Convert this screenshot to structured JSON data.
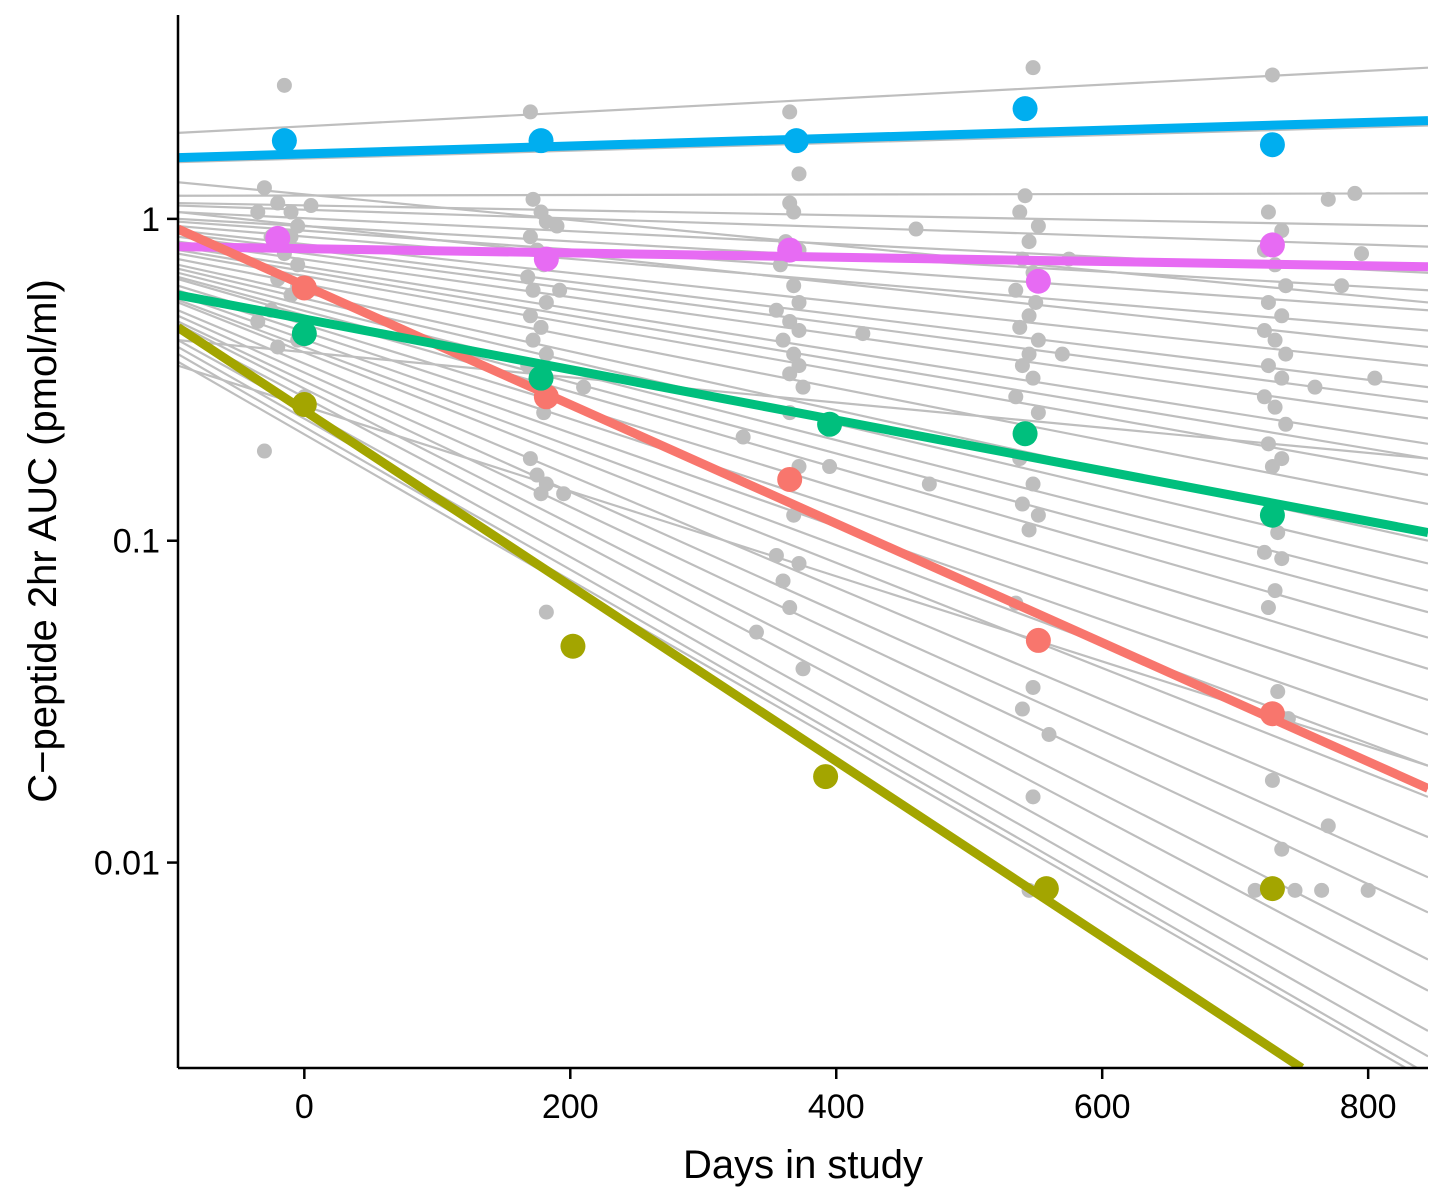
{
  "chart_data": {
    "type": "scatter",
    "title": "",
    "xlabel": "Days in study",
    "ylabel": "C−peptide 2hr AUC (pmol/ml)",
    "x_scale": "linear",
    "y_scale": "log10",
    "xlim": [
      -95,
      845
    ],
    "ylim": [
      0.0023,
      4.3
    ],
    "grid": false,
    "legend": "none",
    "x_ticks": [
      {
        "value": 0,
        "label": "0"
      },
      {
        "value": 200,
        "label": "200"
      },
      {
        "value": 400,
        "label": "400"
      },
      {
        "value": 600,
        "label": "600"
      },
      {
        "value": 800,
        "label": "800"
      }
    ],
    "y_ticks": [
      {
        "value": 1,
        "label": "1"
      },
      {
        "value": 0.1,
        "label": "0.1"
      },
      {
        "value": 0.01,
        "label": "0.01"
      }
    ],
    "background_fits": {
      "color": "#bebebe",
      "x_range": [
        -95,
        845
      ],
      "start_end_values": [
        [
          1.85,
          2.95
        ],
        [
          1.5,
          1.95
        ],
        [
          1.18,
          1.2
        ],
        [
          1.12,
          0.95
        ],
        [
          1.1,
          0.82
        ],
        [
          1.05,
          0.68
        ],
        [
          1.0,
          0.6
        ],
        [
          0.98,
          0.52
        ],
        [
          0.95,
          0.45
        ],
        [
          1.05,
          0.4
        ],
        [
          0.92,
          0.35
        ],
        [
          0.9,
          0.3
        ],
        [
          0.88,
          0.27
        ],
        [
          0.85,
          0.24
        ],
        [
          0.82,
          0.2
        ],
        [
          0.8,
          0.18
        ],
        [
          0.78,
          0.16
        ],
        [
          0.75,
          0.13
        ],
        [
          0.72,
          0.1
        ],
        [
          0.7,
          0.085
        ],
        [
          0.68,
          0.07
        ],
        [
          0.66,
          0.06
        ],
        [
          0.65,
          0.05
        ],
        [
          0.62,
          0.04
        ],
        [
          0.6,
          0.032
        ],
        [
          0.58,
          0.025
        ],
        [
          0.56,
          0.02
        ],
        [
          0.55,
          0.016
        ],
        [
          0.52,
          0.012
        ],
        [
          0.5,
          0.009
        ],
        [
          0.48,
          0.007
        ],
        [
          0.47,
          0.005
        ],
        [
          0.45,
          0.004
        ],
        [
          0.42,
          0.003
        ],
        [
          0.4,
          0.0025
        ],
        [
          0.38,
          0.0022
        ],
        [
          0.36,
          0.0021
        ],
        [
          0.35,
          0.02
        ],
        [
          0.42,
          0.18
        ],
        [
          1.3,
          0.55
        ]
      ]
    },
    "background_points": {
      "color": "#bebebe",
      "points": [
        [
          -15,
          2.6
        ],
        [
          -30,
          1.25
        ],
        [
          -20,
          1.12
        ],
        [
          -10,
          1.05
        ],
        [
          -5,
          0.95
        ],
        [
          -25,
          0.88
        ],
        [
          -15,
          0.78
        ],
        [
          -5,
          0.72
        ],
        [
          -20,
          0.65
        ],
        [
          -10,
          0.58
        ],
        [
          -25,
          0.52
        ],
        [
          -35,
          0.48
        ],
        [
          -5,
          0.42
        ],
        [
          -20,
          0.4
        ],
        [
          -30,
          0.19
        ],
        [
          0,
          0.28
        ],
        [
          -5,
          0.62
        ],
        [
          5,
          1.1
        ],
        [
          -35,
          1.05
        ],
        [
          -10,
          0.88
        ],
        [
          170,
          2.15
        ],
        [
          172,
          1.15
        ],
        [
          178,
          1.05
        ],
        [
          182,
          0.98
        ],
        [
          170,
          0.88
        ],
        [
          175,
          0.8
        ],
        [
          180,
          0.72
        ],
        [
          168,
          0.66
        ],
        [
          172,
          0.6
        ],
        [
          182,
          0.55
        ],
        [
          170,
          0.5
        ],
        [
          178,
          0.46
        ],
        [
          172,
          0.42
        ],
        [
          182,
          0.38
        ],
        [
          168,
          0.35
        ],
        [
          180,
          0.25
        ],
        [
          170,
          0.18
        ],
        [
          175,
          0.16
        ],
        [
          182,
          0.15
        ],
        [
          178,
          0.14
        ],
        [
          195,
          0.14
        ],
        [
          182,
          0.06
        ],
        [
          190,
          0.95
        ],
        [
          192,
          0.6
        ],
        [
          210,
          0.3
        ],
        [
          365,
          2.15
        ],
        [
          372,
          1.38
        ],
        [
          365,
          1.12
        ],
        [
          368,
          1.05
        ],
        [
          362,
          0.85
        ],
        [
          372,
          0.8
        ],
        [
          358,
          0.72
        ],
        [
          368,
          0.62
        ],
        [
          372,
          0.55
        ],
        [
          355,
          0.52
        ],
        [
          365,
          0.48
        ],
        [
          372,
          0.45
        ],
        [
          360,
          0.42
        ],
        [
          368,
          0.38
        ],
        [
          372,
          0.35
        ],
        [
          365,
          0.33
        ],
        [
          375,
          0.3
        ],
        [
          365,
          0.25
        ],
        [
          372,
          0.17
        ],
        [
          368,
          0.12
        ],
        [
          355,
          0.09
        ],
        [
          372,
          0.085
        ],
        [
          360,
          0.075
        ],
        [
          365,
          0.062
        ],
        [
          375,
          0.04
        ],
        [
          330,
          0.21
        ],
        [
          340,
          0.052
        ],
        [
          420,
          0.44
        ],
        [
          395,
          0.17
        ],
        [
          460,
          0.93
        ],
        [
          470,
          0.15
        ],
        [
          548,
          2.95
        ],
        [
          542,
          1.18
        ],
        [
          538,
          1.05
        ],
        [
          552,
          0.95
        ],
        [
          545,
          0.85
        ],
        [
          540,
          0.75
        ],
        [
          548,
          0.68
        ],
        [
          535,
          0.6
        ],
        [
          550,
          0.55
        ],
        [
          545,
          0.5
        ],
        [
          538,
          0.46
        ],
        [
          552,
          0.42
        ],
        [
          545,
          0.38
        ],
        [
          540,
          0.35
        ],
        [
          548,
          0.32
        ],
        [
          535,
          0.28
        ],
        [
          552,
          0.25
        ],
        [
          545,
          0.22
        ],
        [
          538,
          0.18
        ],
        [
          548,
          0.15
        ],
        [
          540,
          0.13
        ],
        [
          552,
          0.12
        ],
        [
          545,
          0.108
        ],
        [
          535,
          0.064
        ],
        [
          548,
          0.035
        ],
        [
          540,
          0.03
        ],
        [
          560,
          0.025
        ],
        [
          548,
          0.016
        ],
        [
          545,
          0.0082
        ],
        [
          575,
          0.75
        ],
        [
          570,
          0.38
        ],
        [
          555,
          0.0082
        ],
        [
          728,
          2.8
        ],
        [
          725,
          1.05
        ],
        [
          735,
          0.92
        ],
        [
          722,
          0.8
        ],
        [
          730,
          0.72
        ],
        [
          738,
          0.62
        ],
        [
          725,
          0.55
        ],
        [
          735,
          0.5
        ],
        [
          722,
          0.45
        ],
        [
          730,
          0.42
        ],
        [
          738,
          0.38
        ],
        [
          725,
          0.35
        ],
        [
          735,
          0.32
        ],
        [
          722,
          0.28
        ],
        [
          730,
          0.26
        ],
        [
          738,
          0.23
        ],
        [
          725,
          0.2
        ],
        [
          735,
          0.18
        ],
        [
          728,
          0.17
        ],
        [
          732,
          0.106
        ],
        [
          722,
          0.092
        ],
        [
          735,
          0.088
        ],
        [
          730,
          0.07
        ],
        [
          725,
          0.062
        ],
        [
          732,
          0.034
        ],
        [
          740,
          0.028
        ],
        [
          728,
          0.018
        ],
        [
          735,
          0.011
        ],
        [
          715,
          0.0082
        ],
        [
          765,
          0.0082
        ],
        [
          790,
          1.2
        ],
        [
          770,
          1.15
        ],
        [
          795,
          0.78
        ],
        [
          780,
          0.62
        ],
        [
          805,
          0.32
        ],
        [
          760,
          0.3
        ],
        [
          800,
          0.0082
        ],
        [
          770,
          0.013
        ],
        [
          745,
          0.0082
        ]
      ]
    },
    "series": [
      {
        "name": "blue",
        "color": "#00aeef",
        "fit": [
          [
            -95,
            1.55
          ],
          [
            845,
            2.02
          ]
        ],
        "points": [
          [
            -15,
            1.75
          ],
          [
            178,
            1.75
          ],
          [
            370,
            1.75
          ],
          [
            542,
            2.2
          ],
          [
            728,
            1.7
          ]
        ]
      },
      {
        "name": "magenta",
        "color": "#e76bf3",
        "fit": [
          [
            -95,
            0.82
          ],
          [
            845,
            0.71
          ]
        ],
        "points": [
          [
            -20,
            0.87
          ],
          [
            182,
            0.75
          ],
          [
            365,
            0.8
          ],
          [
            552,
            0.64
          ],
          [
            728,
            0.83
          ]
        ]
      },
      {
        "name": "red",
        "color": "#f8766d",
        "fit": [
          [
            -95,
            0.93
          ],
          [
            845,
            0.017
          ]
        ],
        "points": [
          [
            0,
            0.61
          ],
          [
            182,
            0.28
          ],
          [
            365,
            0.155
          ],
          [
            552,
            0.049
          ],
          [
            728,
            0.029
          ]
        ]
      },
      {
        "name": "green",
        "color": "#00bf7d",
        "fit": [
          [
            -95,
            0.58
          ],
          [
            845,
            0.106
          ]
        ],
        "points": [
          [
            0,
            0.44
          ],
          [
            178,
            0.32
          ],
          [
            395,
            0.23
          ],
          [
            542,
            0.215
          ],
          [
            728,
            0.12
          ]
        ]
      },
      {
        "name": "olive",
        "color": "#a3a500",
        "fit": [
          [
            -95,
            0.46
          ],
          [
            750,
            0.0023
          ]
        ],
        "points": [
          [
            0,
            0.265
          ],
          [
            202,
            0.047
          ],
          [
            392,
            0.0185
          ],
          [
            558,
            0.0083
          ],
          [
            728,
            0.0083
          ]
        ]
      }
    ]
  }
}
